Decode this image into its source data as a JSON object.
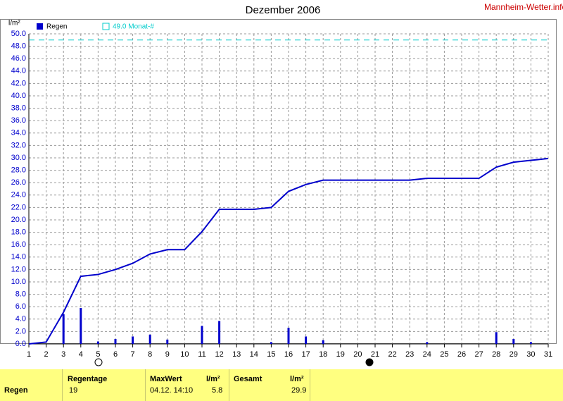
{
  "chart_data": {
    "type": "combo",
    "title": "Dezember 2006",
    "y_label": "l/m²",
    "site": "Mannheim-Wetter.info",
    "xlim": [
      1,
      31
    ],
    "ylim": [
      0,
      50
    ],
    "xticks": [
      1,
      2,
      3,
      4,
      5,
      6,
      7,
      8,
      9,
      10,
      11,
      12,
      13,
      14,
      15,
      16,
      17,
      18,
      19,
      20,
      21,
      22,
      23,
      24,
      25,
      26,
      27,
      28,
      29,
      30,
      31
    ],
    "yticks": [
      {
        "value": 0,
        "label": "0.0"
      },
      {
        "value": 2,
        "label": "2.0"
      },
      {
        "value": 4,
        "label": "4.0"
      },
      {
        "value": 6,
        "label": "6.0"
      },
      {
        "value": 8,
        "label": "8.0"
      },
      {
        "value": 10,
        "label": "10.0"
      },
      {
        "value": 12,
        "label": "12.0"
      },
      {
        "value": 14,
        "label": "14.0"
      },
      {
        "value": 16,
        "label": "16.0"
      },
      {
        "value": 18,
        "label": "18.0"
      },
      {
        "value": 20,
        "label": "20.0"
      },
      {
        "value": 22,
        "label": "22.0"
      },
      {
        "value": 24,
        "label": "24.0"
      },
      {
        "value": 26,
        "label": "26.0"
      },
      {
        "value": 28,
        "label": "28.0"
      },
      {
        "value": 30,
        "label": "30.0"
      },
      {
        "value": 32,
        "label": "32.0"
      },
      {
        "value": 34,
        "label": "34.0"
      },
      {
        "value": 36,
        "label": "36.0"
      },
      {
        "value": 38,
        "label": "38.0"
      },
      {
        "value": 40,
        "label": "40.0"
      },
      {
        "value": 42,
        "label": "42.0"
      },
      {
        "value": 44,
        "label": "44.0"
      },
      {
        "value": 46,
        "label": "46.0"
      },
      {
        "value": 48,
        "label": "48.0"
      },
      {
        "value": 50,
        "label": "50.0"
      }
    ],
    "grid": true,
    "series": [
      {
        "name": "Regen",
        "type": "bar",
        "color": "#0000cc",
        "x": [
          3,
          4,
          5,
          6,
          7,
          8,
          9,
          11,
          12,
          15,
          16,
          17,
          18,
          24,
          28,
          29,
          30
        ],
        "values": [
          4.8,
          5.8,
          0.4,
          0.8,
          1.2,
          1.5,
          0.7,
          2.9,
          3.7,
          0.3,
          2.6,
          1.2,
          0.6,
          0.3,
          1.9,
          0.8,
          0.3
        ]
      },
      {
        "type": "line",
        "color": "#0000cc",
        "x": [
          1,
          2,
          3,
          4,
          5,
          6,
          7,
          8,
          9,
          10,
          11,
          12,
          13,
          14,
          15,
          16,
          17,
          18,
          19,
          20,
          21,
          22,
          23,
          24,
          25,
          26,
          27,
          28,
          29,
          30,
          31
        ],
        "values": [
          0,
          0.3,
          5.1,
          10.9,
          11.2,
          12.0,
          13.0,
          14.5,
          15.2,
          15.2,
          18.1,
          21.7,
          21.7,
          21.7,
          22.0,
          24.6,
          25.7,
          26.4,
          26.4,
          26.4,
          26.4,
          26.4,
          26.4,
          26.7,
          26.7,
          26.7,
          26.7,
          28.5,
          29.3,
          29.6,
          29.9
        ]
      }
    ],
    "reference": {
      "value": 49,
      "label": "49.0 Monat-#",
      "color": "#00cccc"
    }
  },
  "table": {
    "header": [
      "Regentage",
      "MaxWert",
      "l/m²",
      "Gesamt",
      "l/m²"
    ],
    "rows": [
      [
        "Regen",
        19,
        "04.12. 14:10",
        5.8,
        29.9
      ]
    ]
  }
}
